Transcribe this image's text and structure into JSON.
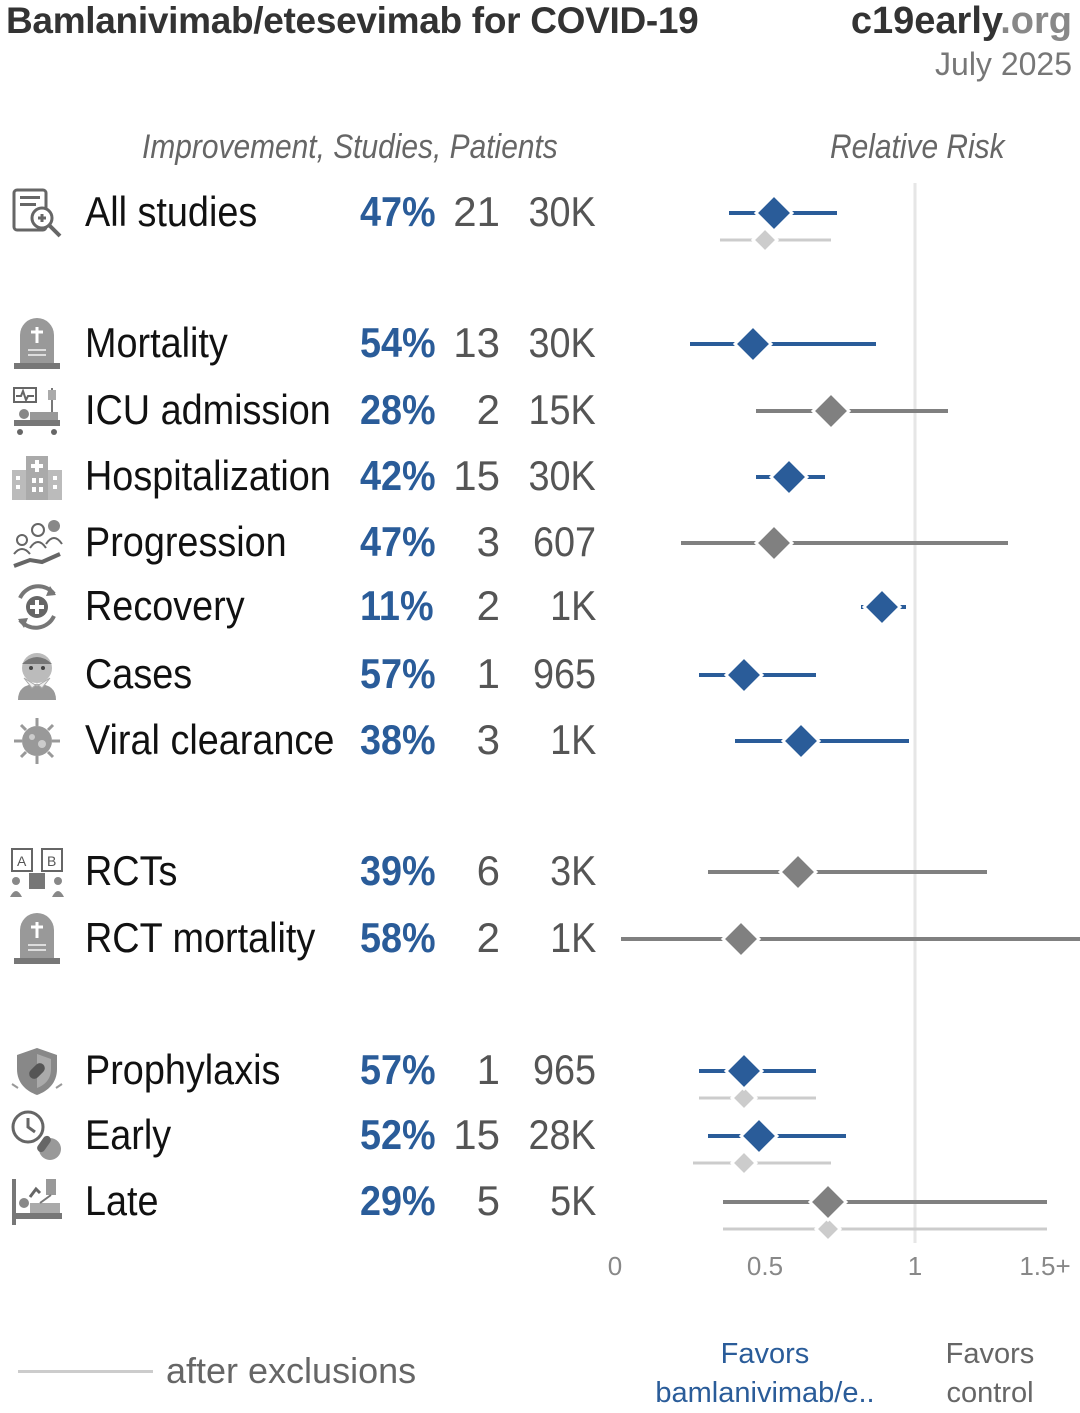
{
  "header": {
    "title": "Bamlanivimab/etesevimab for COVID-19",
    "site_main": "c19early",
    "site_tld": ".org",
    "date": "July 2025",
    "left_columns_header": "Improvement, Studies, Patients",
    "right_column_header": "Relative Risk"
  },
  "rows": [
    {
      "label": "All studies",
      "improvement": "47%",
      "studies": "21",
      "patients": "30K",
      "icon": "clipboard-search-icon"
    },
    {
      "label": "Mortality",
      "improvement": "54%",
      "studies": "13",
      "patients": "30K",
      "icon": "tombstone-icon"
    },
    {
      "label": "ICU admission",
      "improvement": "28%",
      "studies": "2",
      "patients": "15K",
      "icon": "icu-bed-icon"
    },
    {
      "label": "Hospitalization",
      "improvement": "42%",
      "studies": "15",
      "patients": "30K",
      "icon": "hospital-icon"
    },
    {
      "label": "Progression",
      "improvement": "47%",
      "studies": "3",
      "patients": "607",
      "icon": "progression-icon"
    },
    {
      "label": "Recovery",
      "improvement": "11%",
      "studies": "2",
      "patients": "1K",
      "icon": "recovery-icon"
    },
    {
      "label": "Cases",
      "improvement": "57%",
      "studies": "1",
      "patients": "965",
      "icon": "sick-person-icon"
    },
    {
      "label": "Viral clearance",
      "improvement": "38%",
      "studies": "3",
      "patients": "1K",
      "icon": "virus-icon"
    },
    {
      "label": "RCTs",
      "improvement": "39%",
      "studies": "6",
      "patients": "3K",
      "icon": "rct-icon"
    },
    {
      "label": "RCT mortality",
      "improvement": "58%",
      "studies": "2",
      "patients": "1K",
      "icon": "tombstone-icon"
    },
    {
      "label": "Prophylaxis",
      "improvement": "57%",
      "studies": "1",
      "patients": "965",
      "icon": "shield-icon"
    },
    {
      "label": "Early",
      "improvement": "52%",
      "studies": "15",
      "patients": "28K",
      "icon": "clock-icon"
    },
    {
      "label": "Late",
      "improvement": "29%",
      "studies": "5",
      "patients": "5K",
      "icon": "patient-bed-icon"
    }
  ],
  "chart_data": {
    "type": "forest",
    "x_axis": {
      "ticks": [
        "0",
        "0.5",
        "1",
        "1.5+"
      ],
      "range": [
        0,
        1.55
      ],
      "reference_line": 1
    },
    "estimates": [
      {
        "label": "All studies",
        "rr": 0.53,
        "ci": [
          0.38,
          0.74
        ],
        "color": "blue",
        "after_exclusions": {
          "rr": 0.5,
          "ci": [
            0.35,
            0.72
          ]
        }
      },
      {
        "label": "Mortality",
        "rr": 0.46,
        "ci": [
          0.25,
          0.87
        ],
        "color": "blue"
      },
      {
        "label": "ICU admission",
        "rr": 0.72,
        "ci": [
          0.47,
          1.11
        ],
        "color": "gray"
      },
      {
        "label": "Hospitalization",
        "rr": 0.58,
        "ci": [
          0.47,
          0.7
        ],
        "color": "blue"
      },
      {
        "label": "Progression",
        "rr": 0.53,
        "ci": [
          0.22,
          1.31
        ],
        "color": "gray"
      },
      {
        "label": "Recovery",
        "rr": 0.89,
        "ci": [
          0.82,
          0.97
        ],
        "color": "blue"
      },
      {
        "label": "Cases",
        "rr": 0.43,
        "ci": [
          0.28,
          0.67
        ],
        "color": "blue"
      },
      {
        "label": "Viral clearance",
        "rr": 0.62,
        "ci": [
          0.4,
          0.98
        ],
        "color": "blue"
      },
      {
        "label": "RCTs",
        "rr": 0.61,
        "ci": [
          0.31,
          1.24
        ],
        "color": "gray"
      },
      {
        "label": "RCT mortality",
        "rr": 0.42,
        "ci": [
          0.02,
          1.55
        ],
        "color": "gray"
      },
      {
        "label": "Prophylaxis",
        "rr": 0.43,
        "ci": [
          0.28,
          0.67
        ],
        "color": "blue",
        "after_exclusions": {
          "rr": 0.43,
          "ci": [
            0.28,
            0.67
          ]
        }
      },
      {
        "label": "Early",
        "rr": 0.48,
        "ci": [
          0.31,
          0.77
        ],
        "color": "blue",
        "after_exclusions": {
          "rr": 0.43,
          "ci": [
            0.26,
            0.72
          ]
        }
      },
      {
        "label": "Late",
        "rr": 0.71,
        "ci": [
          0.36,
          1.44
        ],
        "color": "gray",
        "after_exclusions": {
          "rr": 0.71,
          "ci": [
            0.36,
            1.44
          ]
        }
      }
    ],
    "colors": {
      "blue": "#2a5c99",
      "gray": "#808080",
      "exclusions": "#cccccc",
      "reference": "#e6e6e6"
    }
  },
  "legend": {
    "after_exclusions": "after exclusions"
  },
  "footer": {
    "favors_treatment_1": "Favors",
    "favors_treatment_2": "bamlanivimab/e..",
    "favors_control_1": "Favors",
    "favors_control_2": "control"
  }
}
